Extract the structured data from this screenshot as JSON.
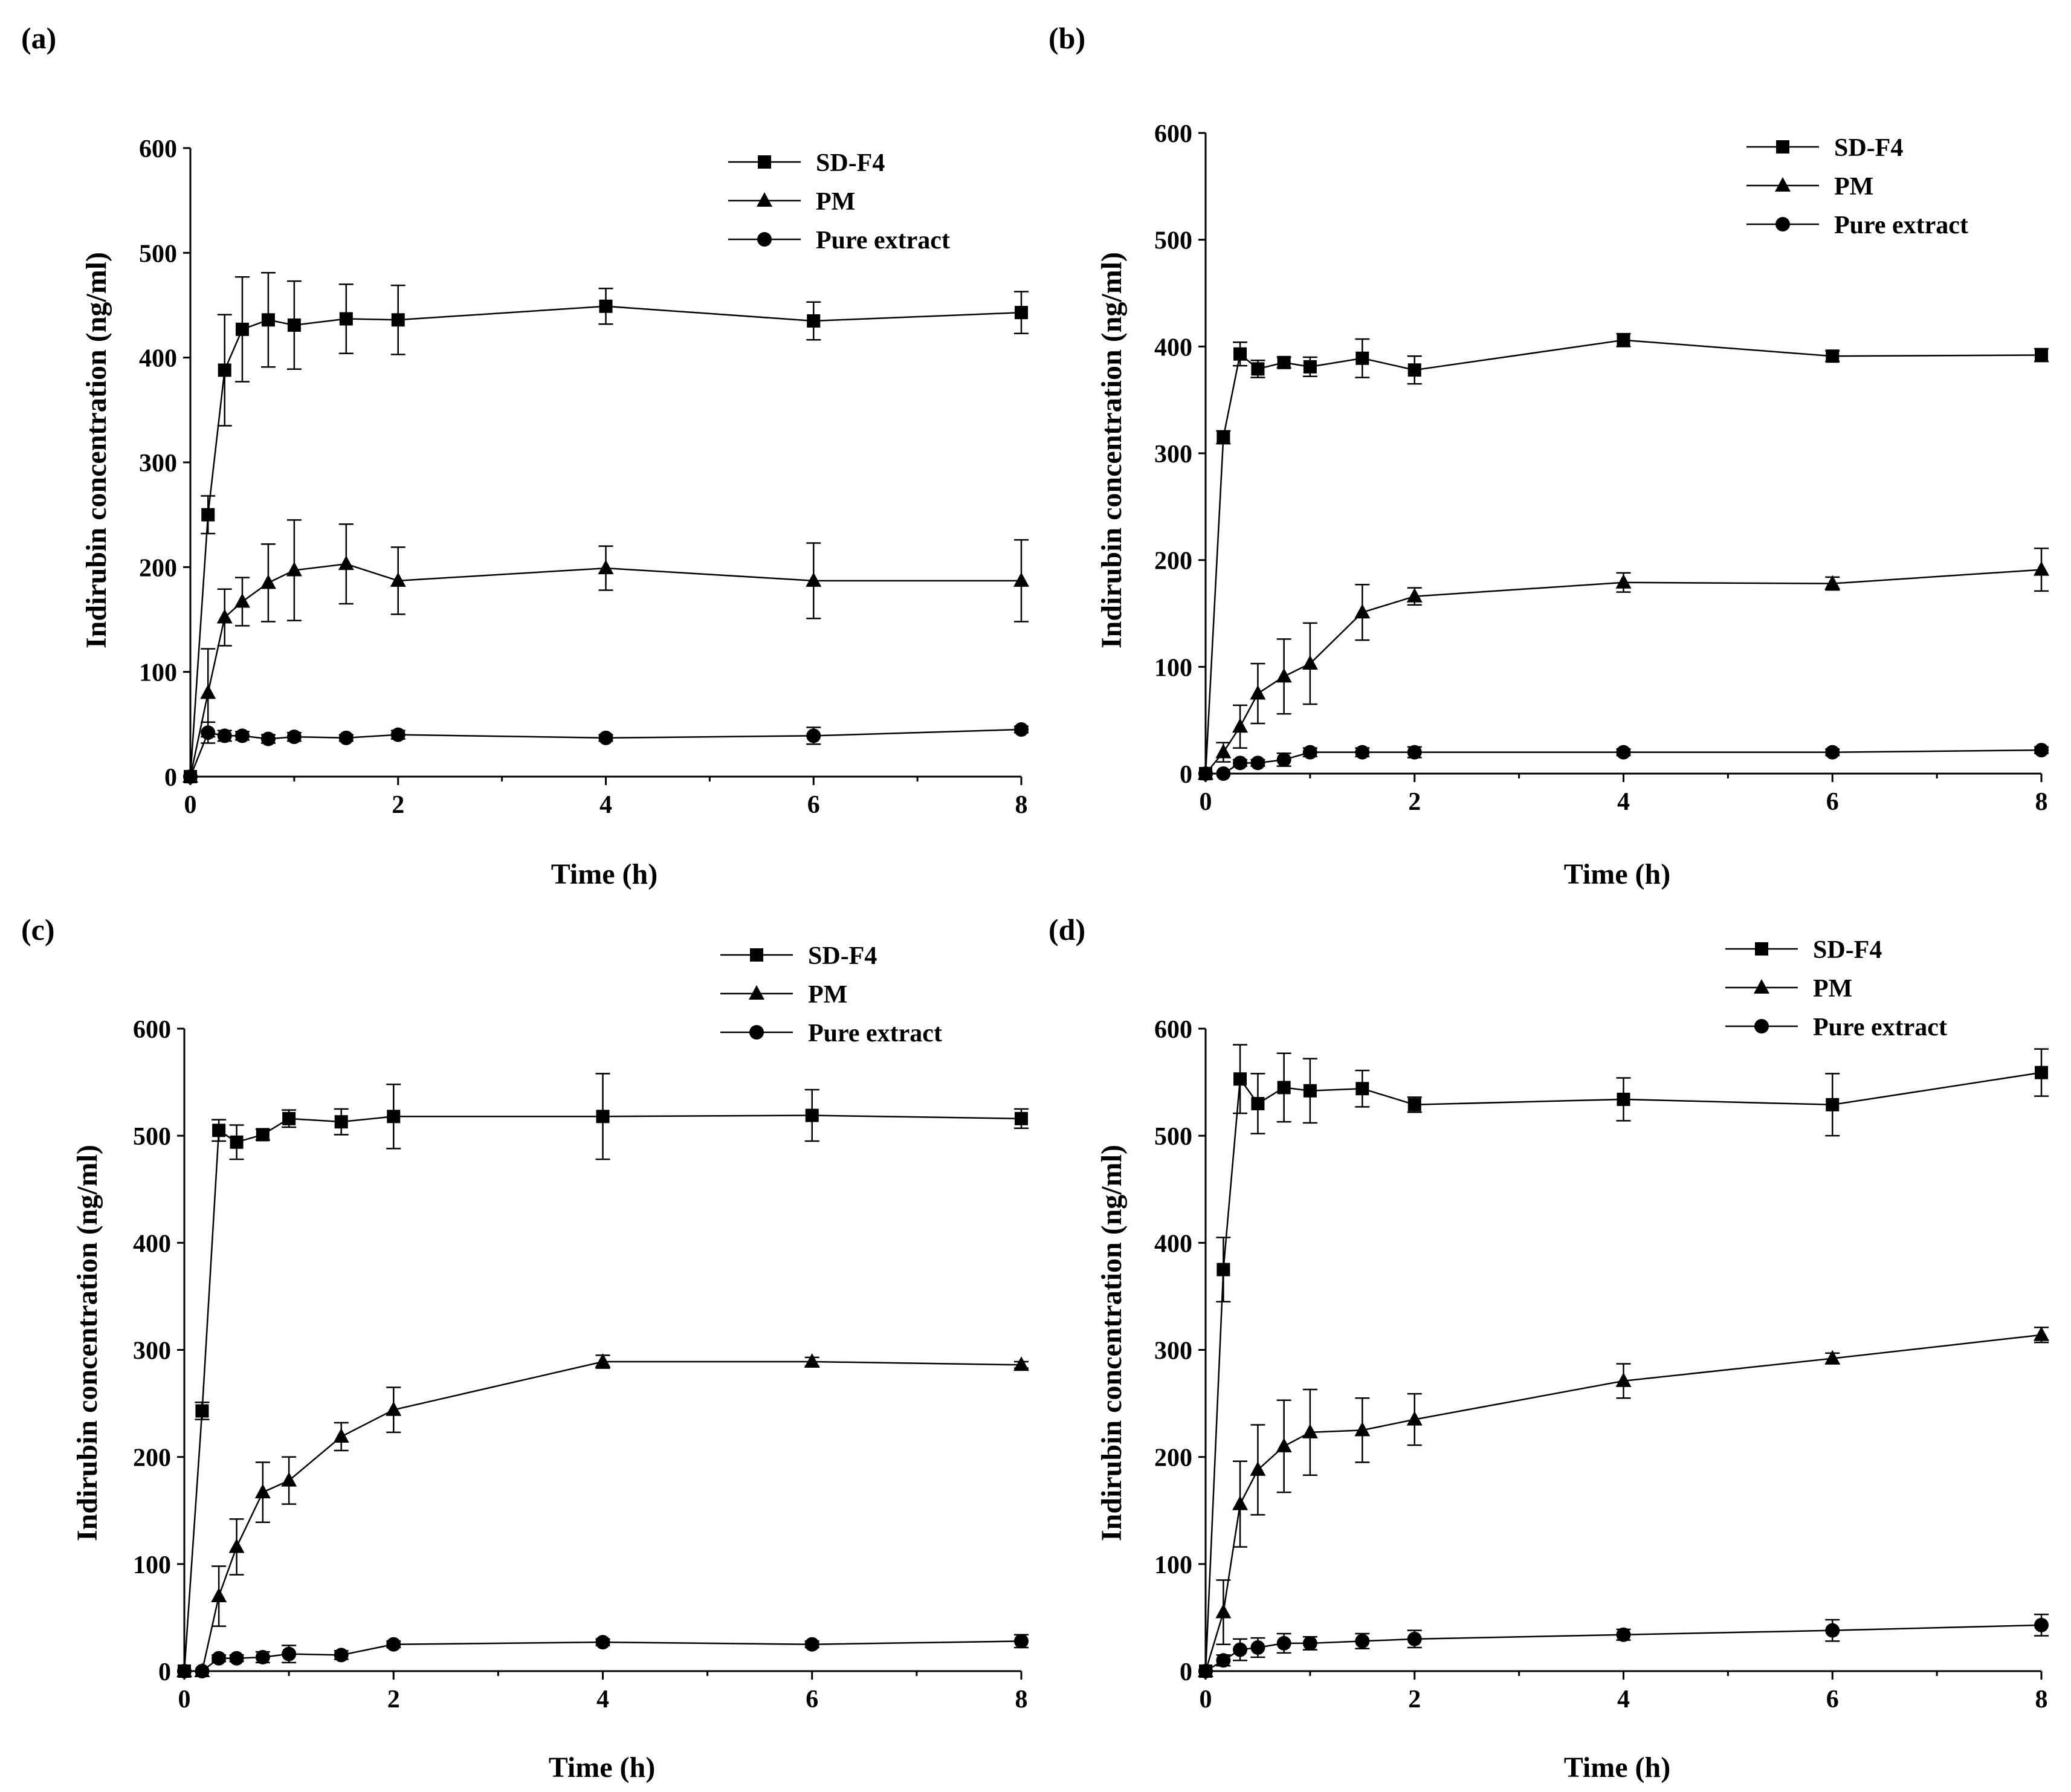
{
  "figure": {
    "panels": [
      {
        "label": "(a)",
        "xlabel": "Time (h)",
        "ylabel": "Indirubin concentration (ng/ml)"
      },
      {
        "label": "(b)",
        "xlabel": "Time (h)",
        "ylabel": "Indirubin concentration (ng/ml)"
      },
      {
        "label": "(c)",
        "xlabel": "Time (h)",
        "ylabel": "Indirubin concentration (ng/ml)"
      },
      {
        "label": "(d)",
        "xlabel": "Time (h)",
        "ylabel": "Indirubin concentration (ng/ml)"
      }
    ]
  },
  "chart_data": [
    {
      "type": "line",
      "panel": "(a)",
      "xlabel": "Time (h)",
      "ylabel": "Indirubin concentration (ng/ml)",
      "xlim": [
        0,
        8
      ],
      "ylim": [
        0,
        600
      ],
      "xticks": [
        "0",
        "2",
        "4",
        "6",
        "8"
      ],
      "yticks": [
        "0",
        "100",
        "200",
        "300",
        "400",
        "500",
        "600"
      ],
      "legend_position": "top-right",
      "x": [
        0,
        0.17,
        0.33,
        0.5,
        0.75,
        1,
        1.5,
        2,
        4,
        6,
        8
      ],
      "series": [
        {
          "name": "SD-F4",
          "marker": "square",
          "values": [
            0,
            250,
            388,
            427,
            436,
            431,
            437,
            436,
            449,
            435,
            443
          ],
          "errors": [
            0,
            18,
            53,
            50,
            45,
            42,
            33,
            33,
            17,
            18,
            20
          ]
        },
        {
          "name": "PM",
          "marker": "triangle",
          "values": [
            0,
            80,
            152,
            167,
            185,
            197,
            203,
            187,
            199,
            187,
            187
          ],
          "errors": [
            0,
            42,
            27,
            23,
            37,
            48,
            38,
            32,
            21,
            36,
            39
          ]
        },
        {
          "name": "Pure extract",
          "marker": "circle",
          "values": [
            0,
            42,
            39,
            39,
            36,
            38,
            37,
            40,
            37,
            39,
            45
          ],
          "errors": [
            0,
            10,
            5,
            4,
            4,
            4,
            3,
            4,
            3,
            8,
            3
          ]
        }
      ]
    },
    {
      "type": "line",
      "panel": "(b)",
      "xlabel": "Time (h)",
      "ylabel": "Indirubin concentration (ng/ml)",
      "xlim": [
        0,
        8
      ],
      "ylim": [
        0,
        600
      ],
      "xticks": [
        "0",
        "2",
        "4",
        "6",
        "8"
      ],
      "yticks": [
        "0",
        "100",
        "200",
        "300",
        "400",
        "500",
        "600"
      ],
      "legend_position": "top-right",
      "x": [
        0,
        0.17,
        0.33,
        0.5,
        0.75,
        1,
        1.5,
        2,
        4,
        6,
        8
      ],
      "series": [
        {
          "name": "SD-F4",
          "marker": "square",
          "values": [
            0,
            315,
            393,
            379,
            385,
            381,
            389,
            378,
            406,
            391,
            392
          ],
          "errors": [
            0,
            6,
            11,
            8,
            5,
            9,
            18,
            13,
            6,
            5,
            6
          ]
        },
        {
          "name": "PM",
          "marker": "triangle",
          "values": [
            0,
            20,
            44,
            75,
            91,
            103,
            151,
            166,
            179,
            178,
            191
          ],
          "errors": [
            0,
            9,
            20,
            28,
            35,
            38,
            26,
            8,
            9,
            6,
            20
          ]
        },
        {
          "name": "Pure extract",
          "marker": "circle",
          "values": [
            0,
            0,
            10,
            10,
            13,
            20,
            20,
            20,
            20,
            20,
            22
          ],
          "errors": [
            0,
            0,
            3,
            3,
            6,
            4,
            4,
            5,
            3,
            3,
            3
          ]
        }
      ]
    },
    {
      "type": "line",
      "panel": "(c)",
      "xlabel": "Time (h)",
      "ylabel": "Indirubin concentration (ng/ml)",
      "xlim": [
        0,
        8
      ],
      "ylim": [
        0,
        600
      ],
      "xticks": [
        "0",
        "2",
        "4",
        "6",
        "8"
      ],
      "yticks": [
        "0",
        "100",
        "200",
        "300",
        "400",
        "500",
        "600"
      ],
      "legend_position": "top-right",
      "x": [
        0,
        0.17,
        0.33,
        0.5,
        0.75,
        1,
        1.5,
        2,
        4,
        6,
        8
      ],
      "series": [
        {
          "name": "SD-F4",
          "marker": "square",
          "values": [
            0,
            243,
            505,
            494,
            501,
            516,
            513,
            518,
            518,
            519,
            516
          ],
          "errors": [
            0,
            8,
            10,
            16,
            5,
            8,
            12,
            30,
            40,
            24,
            9
          ]
        },
        {
          "name": "PM",
          "marker": "triangle",
          "values": [
            0,
            0,
            70,
            116,
            167,
            178,
            219,
            244,
            289,
            289,
            286
          ],
          "errors": [
            0,
            0,
            28,
            26,
            28,
            22,
            13,
            21,
            6,
            4,
            3
          ]
        },
        {
          "name": "Pure extract",
          "marker": "circle",
          "values": [
            0,
            0,
            12,
            12,
            13,
            16,
            15,
            25,
            27,
            25,
            28
          ],
          "errors": [
            0,
            0,
            3,
            3,
            5,
            8,
            4,
            3,
            3,
            3,
            6
          ]
        }
      ]
    },
    {
      "type": "line",
      "panel": "(d)",
      "xlabel": "Time (h)",
      "ylabel": "Indirubin concentration (ng/ml)",
      "xlim": [
        0,
        8
      ],
      "ylim": [
        0,
        600
      ],
      "xticks": [
        "0",
        "2",
        "4",
        "6",
        "8"
      ],
      "yticks": [
        "0",
        "100",
        "200",
        "300",
        "400",
        "500",
        "600"
      ],
      "legend_position": "top-right",
      "x": [
        0,
        0.17,
        0.33,
        0.5,
        0.75,
        1,
        1.5,
        2,
        4,
        6,
        8
      ],
      "series": [
        {
          "name": "SD-F4",
          "marker": "square",
          "values": [
            0,
            375,
            553,
            530,
            545,
            542,
            544,
            529,
            534,
            529,
            559
          ],
          "errors": [
            0,
            30,
            32,
            28,
            32,
            30,
            17,
            7,
            20,
            29,
            22
          ]
        },
        {
          "name": "PM",
          "marker": "triangle",
          "values": [
            0,
            55,
            156,
            188,
            210,
            223,
            225,
            235,
            271,
            292,
            314
          ],
          "errors": [
            0,
            30,
            40,
            42,
            43,
            40,
            30,
            24,
            16,
            5,
            7
          ]
        },
        {
          "name": "Pure extract",
          "marker": "circle",
          "values": [
            0,
            10,
            20,
            22,
            26,
            26,
            28,
            30,
            34,
            38,
            43
          ],
          "errors": [
            0,
            5,
            10,
            9,
            9,
            6,
            7,
            8,
            5,
            10,
            10
          ]
        }
      ]
    }
  ]
}
